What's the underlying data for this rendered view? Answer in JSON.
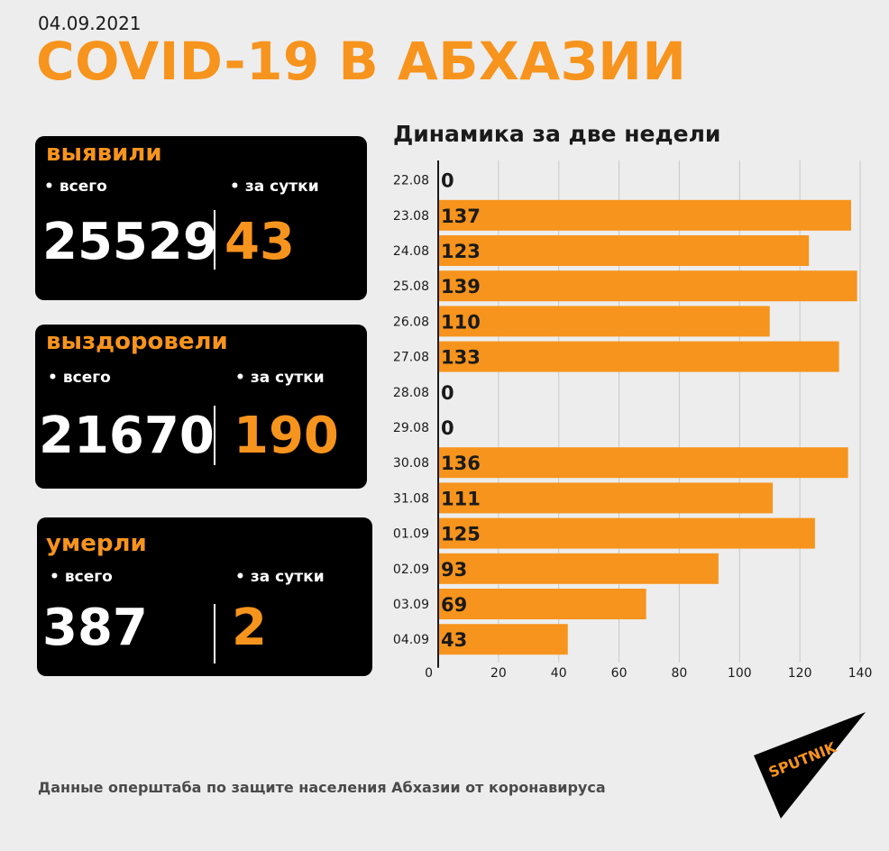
{
  "header": {
    "date": "04.09.2021",
    "title": "COVID-19 В АБХАЗИИ"
  },
  "cards": [
    {
      "title": "выявили",
      "total_label": "всего",
      "daily_label": "за сутки",
      "total": "25529",
      "daily": "43"
    },
    {
      "title": "выздоровели",
      "total_label": "всего",
      "daily_label": "за сутки",
      "total": "21670",
      "daily": "190"
    },
    {
      "title": "умерли",
      "total_label": "всего",
      "daily_label": "за сутки",
      "total": "387",
      "daily": "2"
    }
  ],
  "chart_data": {
    "type": "bar",
    "orientation": "horizontal",
    "title": "Динамика за две недели",
    "categories": [
      "22.08",
      "23.08",
      "24.08",
      "25.08",
      "26.08",
      "27.08",
      "28.08",
      "29.08",
      "30.08",
      "31.08",
      "01.09",
      "02.09",
      "03.09",
      "04.09"
    ],
    "values": [
      0,
      137,
      123,
      139,
      110,
      133,
      0,
      0,
      136,
      111,
      125,
      93,
      69,
      43
    ],
    "xlim": [
      0,
      140
    ],
    "xticks": [
      0,
      20,
      40,
      60,
      80,
      100,
      120,
      140
    ],
    "grid": true,
    "bar_color": "#f7941d"
  },
  "footer": {
    "source": "Данные оперштаба по защите населения Абхазии от коронавируса"
  },
  "logo": {
    "text": "SPUTNIK"
  },
  "colors": {
    "accent": "#f7941d",
    "card_bg": "#000000",
    "page_bg": "#ededed"
  }
}
